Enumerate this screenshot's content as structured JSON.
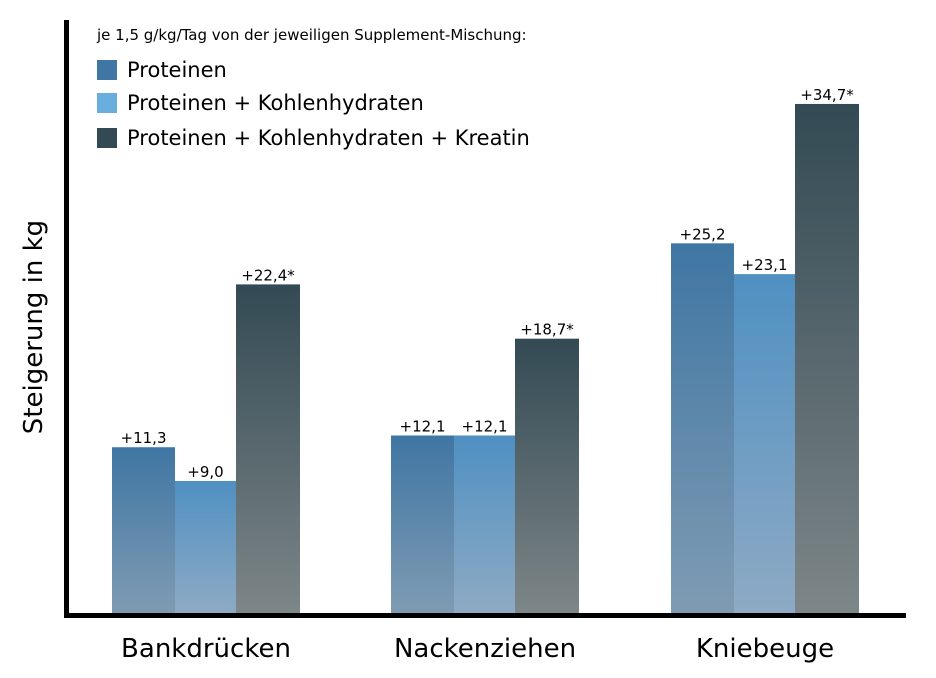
{
  "chart_data": {
    "type": "bar",
    "title": "",
    "subtitle": "je 1,5 g/kg/Tag von der jeweiligen Supplement-Mischung:",
    "xlabel": "",
    "ylabel": "Steigerung in kg",
    "ylim": [
      0,
      40
    ],
    "grid": false,
    "legend_position": "top-left",
    "categories": [
      "Bankdrücken",
      "Nackenziehen",
      "Kniebeuge"
    ],
    "series": [
      {
        "name": "Proteinen",
        "color": "#3f76a3",
        "color_bottom": "#7f9bb3",
        "values": [
          11.3,
          12.1,
          25.2
        ],
        "labels": [
          "+11,3",
          "+12,1",
          "+25,2"
        ]
      },
      {
        "name": "Proteinen + Kohlenhydraten",
        "color": "#4f90c2",
        "legend_color": "#6aaede",
        "color_bottom": "#8eaac4",
        "values": [
          9.0,
          12.1,
          23.1
        ],
        "labels": [
          "+9,0",
          "+12,1",
          "+23,1"
        ]
      },
      {
        "name": "Proteinen + Kohlenhydraten + Kreatin",
        "color": "#334a54",
        "color_bottom": "#7d8688",
        "values": [
          22.4,
          18.7,
          34.7
        ],
        "labels": [
          "+22,4*",
          "+18,7*",
          "+34,7*"
        ]
      }
    ]
  }
}
